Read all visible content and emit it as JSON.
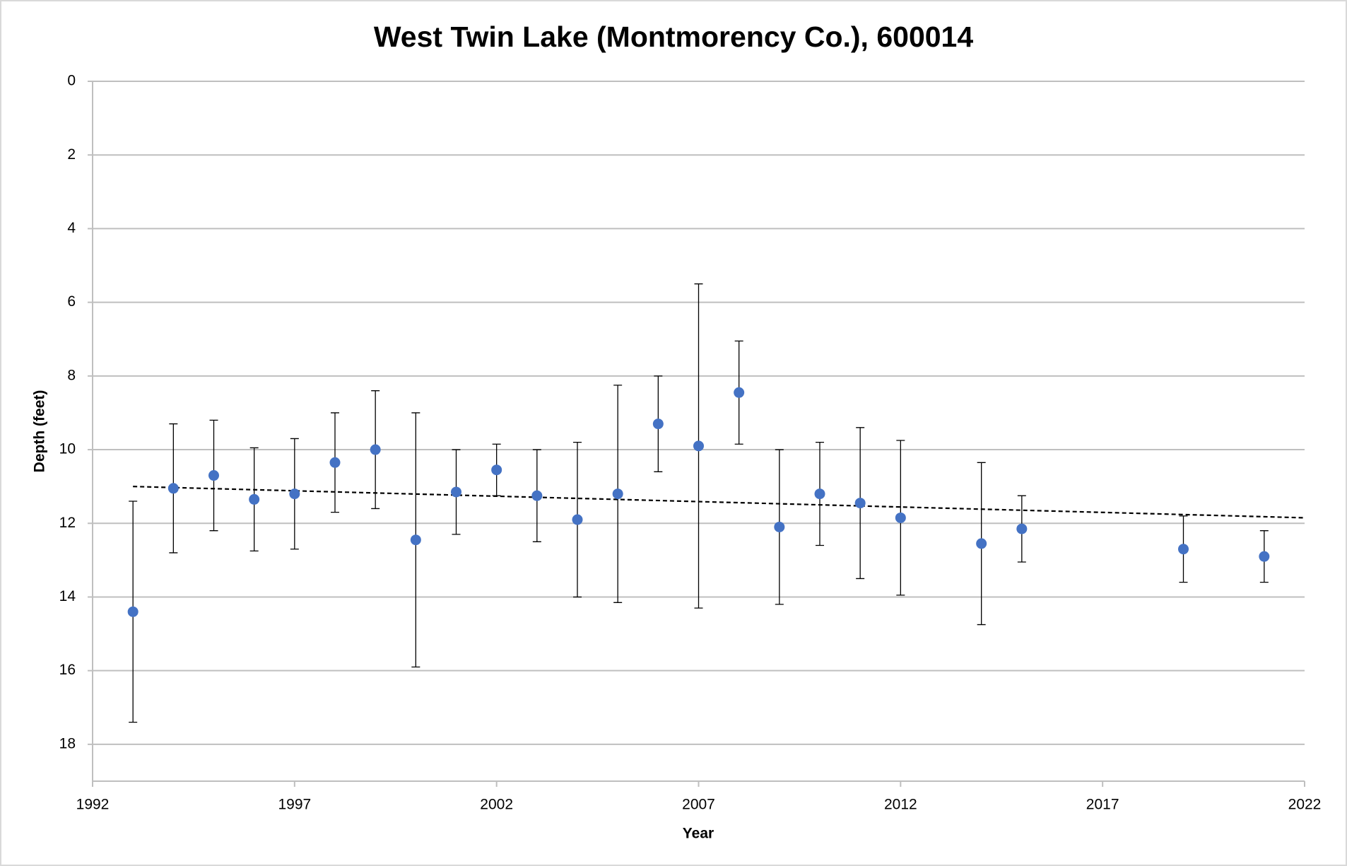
{
  "chart_data": {
    "type": "scatter",
    "title": "West Twin Lake (Montmorency Co.), 600014",
    "x_label": "Year",
    "y_label": "Depth (feet)",
    "x": [
      1993,
      1994,
      1995,
      1996,
      1997,
      1998,
      1999,
      2000,
      2001,
      2002,
      2003,
      2004,
      2005,
      2006,
      2007,
      2008,
      2009,
      2010,
      2011,
      2012,
      2014,
      2015,
      2019,
      2021
    ],
    "values": [
      14.4,
      11.05,
      10.7,
      11.35,
      11.2,
      10.35,
      10.0,
      12.45,
      11.15,
      10.55,
      11.25,
      11.9,
      11.2,
      9.3,
      9.9,
      8.45,
      12.1,
      11.2,
      11.45,
      11.85,
      12.55,
      12.15,
      12.7,
      12.9
    ],
    "errors": [
      3.0,
      1.75,
      1.5,
      1.4,
      1.5,
      1.35,
      1.6,
      3.45,
      1.15,
      0.7,
      1.25,
      2.1,
      2.95,
      1.3,
      4.4,
      1.4,
      2.1,
      1.4,
      2.05,
      2.1,
      2.2,
      0.9,
      0.9,
      0.7
    ],
    "color": "#4472c4",
    "trendline": {
      "x": [
        1993,
        2022
      ],
      "values": [
        11.0,
        11.85
      ]
    },
    "xlim": [
      1992,
      2022
    ],
    "xticks": [
      1992,
      1997,
      2002,
      2007,
      2012,
      2017,
      2022
    ],
    "ylim": [
      0,
      19
    ],
    "yticks": [
      0,
      2,
      4,
      6,
      8,
      10,
      12,
      14,
      16,
      18
    ],
    "y_inverted": true,
    "grid": true
  }
}
